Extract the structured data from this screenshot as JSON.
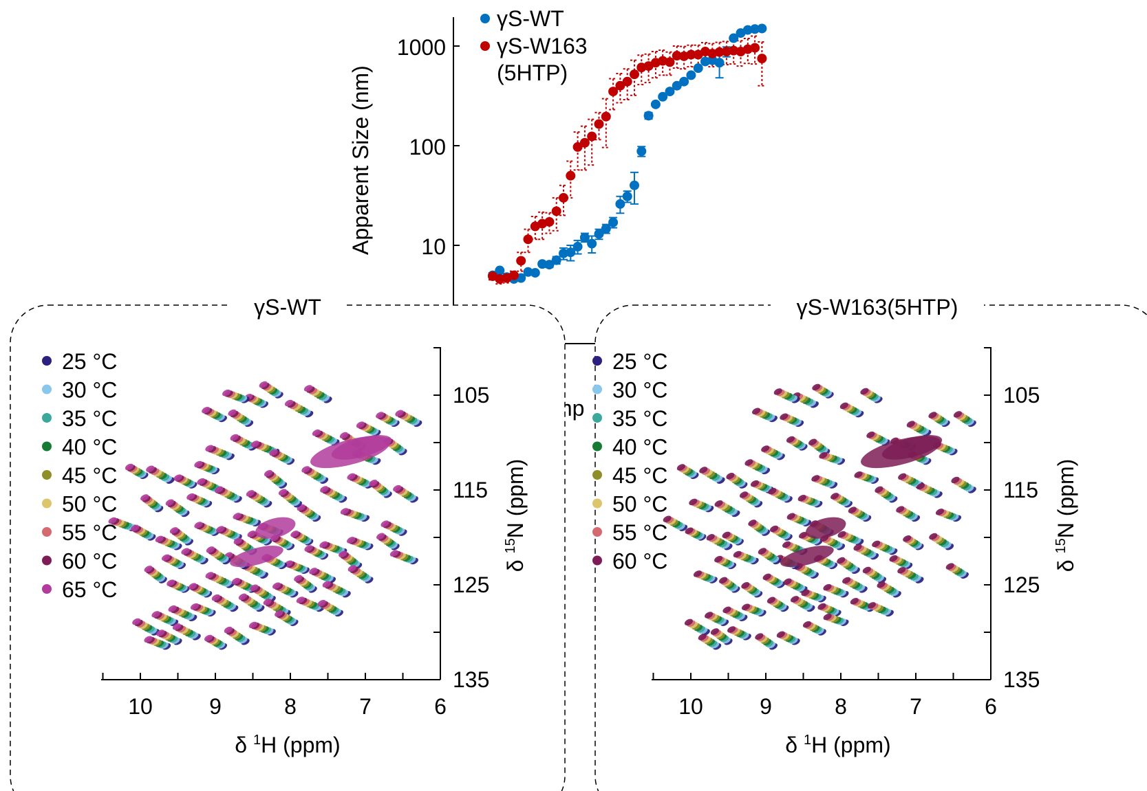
{
  "colors": {
    "wt": "#0070c0",
    "w163": "#c00000",
    "temps": [
      "#2b1f7f",
      "#89c8ea",
      "#3aa99b",
      "#157a33",
      "#8f8f28",
      "#dcc66c",
      "#d46a6f",
      "#7c1d56",
      "#b23c9b"
    ]
  },
  "chart_data": [
    {
      "type": "scatter",
      "ylabel": "Apparent Size (nm)",
      "xlabel_fragment": "mp",
      "yscale": "log",
      "ylim": [
        3,
        2000
      ],
      "xlim": [
        0,
        40
      ],
      "y_ticks": [
        "10",
        "100",
        "1000"
      ],
      "legend_position": "top-left",
      "series": [
        {
          "name": "γS-WT",
          "legend_text": [
            "γS-WT"
          ],
          "color": "#0070c0",
          "x": [
            0,
            1,
            2,
            3,
            4,
            5,
            6,
            7,
            8,
            9,
            10,
            11,
            12,
            13,
            14,
            15,
            16,
            17,
            18,
            19,
            20,
            21,
            22,
            23,
            24,
            25,
            26,
            27,
            28,
            29,
            30,
            31,
            32,
            33,
            34,
            35,
            36,
            37,
            38
          ],
          "y": [
            5,
            5.6,
            4.8,
            4.6,
            4.7,
            5.4,
            5.3,
            6.5,
            6.4,
            7.1,
            8.3,
            8.5,
            9.7,
            12,
            10.4,
            13,
            14.7,
            17,
            26,
            31,
            40,
            88,
            200,
            260,
            310,
            350,
            400,
            440,
            510,
            600,
            700,
            720,
            680,
            880,
            1200,
            1350,
            1450,
            1480,
            1500
          ],
          "err": [
            0,
            0.2,
            0,
            0,
            0,
            0,
            0.2,
            0.3,
            0.4,
            0.6,
            1.1,
            1.5,
            1.5,
            1.2,
            2.0,
            1.5,
            1.5,
            2.0,
            5,
            4,
            14,
            10,
            15,
            10,
            10,
            10,
            15,
            15,
            20,
            20,
            25,
            40,
            200,
            100,
            30,
            20,
            15,
            10,
            10
          ]
        },
        {
          "name": "γS-W163 (5HTP)",
          "legend_text": [
            "γS-W163",
            "(5HTP)"
          ],
          "color": "#c00000",
          "x": [
            0,
            1,
            2,
            3,
            4,
            5,
            6,
            7,
            8,
            9,
            10,
            11,
            12,
            13,
            14,
            15,
            16,
            17,
            18,
            19,
            20,
            21,
            22,
            23,
            24,
            25,
            26,
            27,
            28,
            29,
            30,
            31,
            32,
            33,
            34,
            35,
            36,
            37,
            38
          ],
          "y": [
            4.9,
            4.6,
            4.7,
            5,
            7,
            11.5,
            15.5,
            16.5,
            17.2,
            22,
            30,
            50,
            97,
            107,
            124,
            165,
            196,
            350,
            400,
            440,
            520,
            610,
            630,
            680,
            710,
            690,
            800,
            790,
            820,
            820,
            880,
            840,
            870,
            880,
            900,
            880,
            930,
            960,
            750
          ],
          "err": [
            0.4,
            0.5,
            0.5,
            0.5,
            1.5,
            3,
            4,
            5,
            4,
            8,
            10,
            20,
            40,
            50,
            60,
            50,
            100,
            120,
            130,
            150,
            200,
            200,
            200,
            200,
            200,
            180,
            200,
            200,
            200,
            200,
            200,
            220,
            220,
            230,
            240,
            250,
            260,
            300,
            350
          ]
        }
      ]
    },
    {
      "type": "scatter",
      "panel_title": "γS-WT",
      "xlabel_prefix": "δ ",
      "xlabel_sup": "1",
      "xlabel_suffix": "H (ppm)",
      "ylabel_prefix": "δ ",
      "ylabel_sup": "15",
      "ylabel_suffix": "N (ppm)",
      "xlim": [
        10.5,
        6
      ],
      "ylim": [
        135,
        100
      ],
      "x_ticks": [
        "10",
        "9",
        "8",
        "7",
        "6"
      ],
      "y_ticks": [
        "105",
        "115",
        "125",
        "135"
      ],
      "legend_position": "top-left",
      "series": [
        {
          "name": "25 °C",
          "color": "#2b1f7f"
        },
        {
          "name": "30 °C",
          "color": "#89c8ea"
        },
        {
          "name": "35 °C",
          "color": "#3aa99b"
        },
        {
          "name": "40 °C",
          "color": "#157a33"
        },
        {
          "name": "45 °C",
          "color": "#8f8f28"
        },
        {
          "name": "50 °C",
          "color": "#dcc66c"
        },
        {
          "name": "55 °C",
          "color": "#d46a6f"
        },
        {
          "name": "60 °C",
          "color": "#7c1d56"
        },
        {
          "name": "65 °C",
          "color": "#b23c9b"
        }
      ],
      "peaks": [
        [
          9.6,
          114
        ],
        [
          9.95,
          113.5
        ],
        [
          10.1,
          119
        ],
        [
          9.85,
          120
        ],
        [
          9.5,
          121
        ],
        [
          9.35,
          120.5
        ],
        [
          9.0,
          119.5
        ],
        [
          8.7,
          120
        ],
        [
          8.5,
          121.5
        ],
        [
          8.3,
          120.5
        ],
        [
          9.75,
          117
        ],
        [
          9.4,
          117.5
        ],
        [
          9.1,
          116.5
        ],
        [
          8.95,
          115
        ],
        [
          8.7,
          116
        ],
        [
          9.3,
          114.5
        ],
        [
          9.0,
          113
        ],
        [
          8.8,
          111.5
        ],
        [
          8.5,
          110.5
        ],
        [
          8.2,
          111
        ],
        [
          8.0,
          112
        ],
        [
          8.55,
          108
        ],
        [
          8.9,
          107.5
        ],
        [
          8.35,
          106
        ],
        [
          8.6,
          105.5
        ],
        [
          8.15,
          105
        ],
        [
          7.5,
          105.5
        ],
        [
          7.75,
          107
        ],
        [
          7.4,
          110
        ],
        [
          7.05,
          110.5
        ],
        [
          6.85,
          109
        ],
        [
          6.6,
          108
        ],
        [
          6.3,
          108
        ],
        [
          6.5,
          111
        ],
        [
          6.85,
          112
        ],
        [
          6.95,
          114.5
        ],
        [
          6.7,
          115.5
        ],
        [
          6.35,
          116
        ],
        [
          6.5,
          119.5
        ],
        [
          6.6,
          121
        ],
        [
          6.35,
          122.5
        ],
        [
          7.0,
          118
        ],
        [
          7.3,
          116
        ],
        [
          7.55,
          114
        ],
        [
          7.65,
          118
        ],
        [
          7.9,
          116.5
        ],
        [
          8.1,
          114.5
        ],
        [
          8.3,
          116.5
        ],
        [
          8.45,
          118.5
        ],
        [
          8.15,
          119.5
        ],
        [
          8.0,
          121
        ],
        [
          7.75,
          120.5
        ],
        [
          7.55,
          122
        ],
        [
          7.3,
          121.5
        ],
        [
          7.1,
          123
        ],
        [
          6.95,
          121
        ],
        [
          7.8,
          123.5
        ],
        [
          8.1,
          123
        ],
        [
          8.35,
          124
        ],
        [
          8.6,
          123
        ],
        [
          8.85,
          122.5
        ],
        [
          9.15,
          122.5
        ],
        [
          9.45,
          123
        ],
        [
          9.7,
          124.5
        ],
        [
          9.4,
          125.5
        ],
        [
          9.1,
          126
        ],
        [
          8.8,
          125
        ],
        [
          8.5,
          125.5
        ],
        [
          8.25,
          126.5
        ],
        [
          7.95,
          126
        ],
        [
          7.7,
          125.5
        ],
        [
          7.45,
          124.5
        ],
        [
          7.25,
          126
        ],
        [
          6.95,
          124.5
        ],
        [
          7.6,
          127.5
        ],
        [
          7.35,
          128
        ],
        [
          8.05,
          128
        ],
        [
          8.4,
          127.5
        ],
        [
          8.75,
          127.5
        ],
        [
          9.05,
          128
        ],
        [
          9.3,
          128.5
        ],
        [
          9.55,
          129
        ],
        [
          9.8,
          130
        ],
        [
          9.5,
          131
        ],
        [
          9.25,
          130.5
        ],
        [
          8.9,
          131.5
        ],
        [
          8.6,
          131
        ],
        [
          9.65,
          131.5
        ],
        [
          8.25,
          130
        ],
        [
          7.95,
          129
        ]
      ]
    },
    {
      "type": "scatter",
      "panel_title": "γS-W163(5HTP)",
      "xlabel_prefix": "δ ",
      "xlabel_sup": "1",
      "xlabel_suffix": "H (ppm)",
      "ylabel_prefix": "δ ",
      "ylabel_sup": "15",
      "ylabel_suffix": "N (ppm)",
      "xlim": [
        10.5,
        6
      ],
      "ylim": [
        135,
        100
      ],
      "x_ticks": [
        "10",
        "9",
        "8",
        "7",
        "6"
      ],
      "y_ticks": [
        "105",
        "115",
        "125",
        "135"
      ],
      "legend_position": "top-left",
      "series": [
        {
          "name": "25 °C",
          "color": "#2b1f7f"
        },
        {
          "name": "30 °C",
          "color": "#89c8ea"
        },
        {
          "name": "35 °C",
          "color": "#3aa99b"
        },
        {
          "name": "40 °C",
          "color": "#157a33"
        },
        {
          "name": "45 °C",
          "color": "#8f8f28"
        },
        {
          "name": "50 °C",
          "color": "#dcc66c"
        },
        {
          "name": "55 °C",
          "color": "#d46a6f"
        },
        {
          "name": "60 °C",
          "color": "#7c1d56"
        }
      ],
      "peaks": [
        [
          9.6,
          114
        ],
        [
          9.95,
          113.5
        ],
        [
          10.1,
          119
        ],
        [
          9.85,
          120
        ],
        [
          9.5,
          121
        ],
        [
          9.35,
          120.5
        ],
        [
          9.0,
          119.5
        ],
        [
          8.7,
          120
        ],
        [
          8.5,
          121.5
        ],
        [
          8.3,
          120.5
        ],
        [
          9.75,
          117
        ],
        [
          9.4,
          117.5
        ],
        [
          9.1,
          116.5
        ],
        [
          8.95,
          115
        ],
        [
          8.7,
          116
        ],
        [
          9.3,
          114.5
        ],
        [
          9.0,
          113
        ],
        [
          8.8,
          111.5
        ],
        [
          8.5,
          110.5
        ],
        [
          8.2,
          111
        ],
        [
          8.0,
          112
        ],
        [
          8.55,
          108
        ],
        [
          8.9,
          107.5
        ],
        [
          8.35,
          106
        ],
        [
          8.6,
          105.5
        ],
        [
          8.15,
          105
        ],
        [
          7.5,
          105.5
        ],
        [
          7.75,
          107
        ],
        [
          7.4,
          110
        ],
        [
          7.05,
          110.5
        ],
        [
          6.85,
          109
        ],
        [
          6.6,
          108
        ],
        [
          6.25,
          108
        ],
        [
          6.5,
          111
        ],
        [
          6.85,
          112
        ],
        [
          6.95,
          114.5
        ],
        [
          6.7,
          115.5
        ],
        [
          6.25,
          115
        ],
        [
          6.45,
          118
        ],
        [
          6.55,
          121
        ],
        [
          6.35,
          124
        ],
        [
          7.0,
          118
        ],
        [
          7.3,
          116
        ],
        [
          7.55,
          114
        ],
        [
          7.65,
          118
        ],
        [
          7.9,
          116.5
        ],
        [
          8.1,
          114.5
        ],
        [
          8.3,
          116.5
        ],
        [
          8.45,
          118.5
        ],
        [
          8.15,
          119.5
        ],
        [
          8.0,
          121
        ],
        [
          7.75,
          120.5
        ],
        [
          7.55,
          122
        ],
        [
          7.3,
          121.5
        ],
        [
          7.1,
          123
        ],
        [
          6.95,
          121
        ],
        [
          7.8,
          123.5
        ],
        [
          8.1,
          123
        ],
        [
          8.35,
          124
        ],
        [
          8.6,
          123
        ],
        [
          8.85,
          122.5
        ],
        [
          9.15,
          122.5
        ],
        [
          9.45,
          123
        ],
        [
          9.7,
          124.5
        ],
        [
          9.4,
          125.5
        ],
        [
          9.1,
          126
        ],
        [
          8.8,
          125
        ],
        [
          8.5,
          125.5
        ],
        [
          8.25,
          126.5
        ],
        [
          7.95,
          126
        ],
        [
          7.7,
          125.5
        ],
        [
          7.45,
          124.5
        ],
        [
          7.25,
          126
        ],
        [
          6.95,
          124.5
        ],
        [
          7.6,
          127.5
        ],
        [
          7.35,
          128
        ],
        [
          8.05,
          128
        ],
        [
          8.4,
          127.5
        ],
        [
          8.75,
          127.5
        ],
        [
          9.05,
          128
        ],
        [
          9.3,
          128.5
        ],
        [
          9.55,
          129
        ],
        [
          9.8,
          130
        ],
        [
          9.5,
          131
        ],
        [
          9.25,
          130.5
        ],
        [
          8.9,
          131.5
        ],
        [
          8.6,
          131
        ],
        [
          9.65,
          131.5
        ],
        [
          8.25,
          130
        ],
        [
          7.95,
          129
        ]
      ]
    }
  ]
}
